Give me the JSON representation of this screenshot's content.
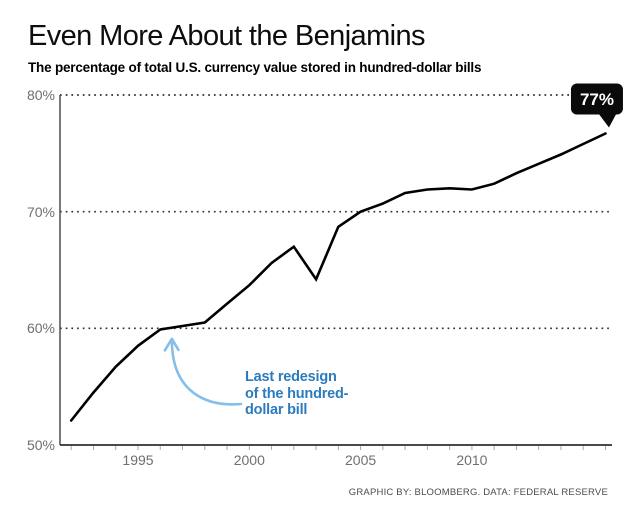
{
  "header": {
    "title": "Even More About the Benjamins",
    "subtitle": "The percentage of total U.S. currency value stored in hundred-dollar bills"
  },
  "chart_data": {
    "type": "line",
    "title": "Even More About the Benjamins",
    "subtitle": "The percentage of total U.S. currency value stored in hundred-dollar bills",
    "x": [
      1992,
      1993,
      1994,
      1995,
      1996,
      1997,
      1998,
      1999,
      2000,
      2001,
      2002,
      2003,
      2004,
      2005,
      2006,
      2007,
      2008,
      2009,
      2010,
      2011,
      2012,
      2013,
      2014,
      2015,
      2016
    ],
    "values": [
      52.1,
      54.5,
      56.7,
      58.5,
      59.9,
      60.2,
      60.5,
      62.1,
      63.7,
      65.6,
      67.0,
      64.2,
      68.7,
      70.0,
      70.7,
      71.6,
      71.9,
      72.0,
      71.9,
      72.4,
      73.3,
      74.1,
      74.9,
      75.8,
      76.7
    ],
    "ylim": [
      50,
      80
    ],
    "yticks": [
      {
        "value": 50,
        "label": "50%"
      },
      {
        "value": 60,
        "label": "60%"
      },
      {
        "value": 70,
        "label": "70%"
      },
      {
        "value": 80,
        "label": "80%"
      }
    ],
    "xticks": [
      {
        "value": 1995,
        "label": "1995"
      },
      {
        "value": 2000,
        "label": "2000"
      },
      {
        "value": 2005,
        "label": "2005"
      },
      {
        "value": 2010,
        "label": "2010"
      }
    ],
    "grid": "dotted-horizontal",
    "legend": "none",
    "end_label": "77%",
    "annotation": {
      "lines": [
        "Last redesign",
        "of the hundred-",
        "dollar bill"
      ],
      "target_year": 1996.5,
      "target_value": 60
    }
  },
  "footer": {
    "credit": "GRAPHIC BY: BLOOMBERG. DATA: FEDERAL RESERVE"
  },
  "colors": {
    "annotation_blue": "#2b7bbd",
    "arrow_blue": "#85bfe9",
    "data_line": "#000000",
    "callout_bg": "#0a0a0a",
    "callout_text": "#ffffff",
    "axis_label": "#6f6f6f",
    "axis_line": "#4f4f4f",
    "bottom_axis": "#2f2f2f",
    "grid_dot": "#2e2e2e",
    "minor_tick": "#a8a8a8",
    "footer_text": "#4c4c4c",
    "title_text": "#0d0d0d"
  }
}
